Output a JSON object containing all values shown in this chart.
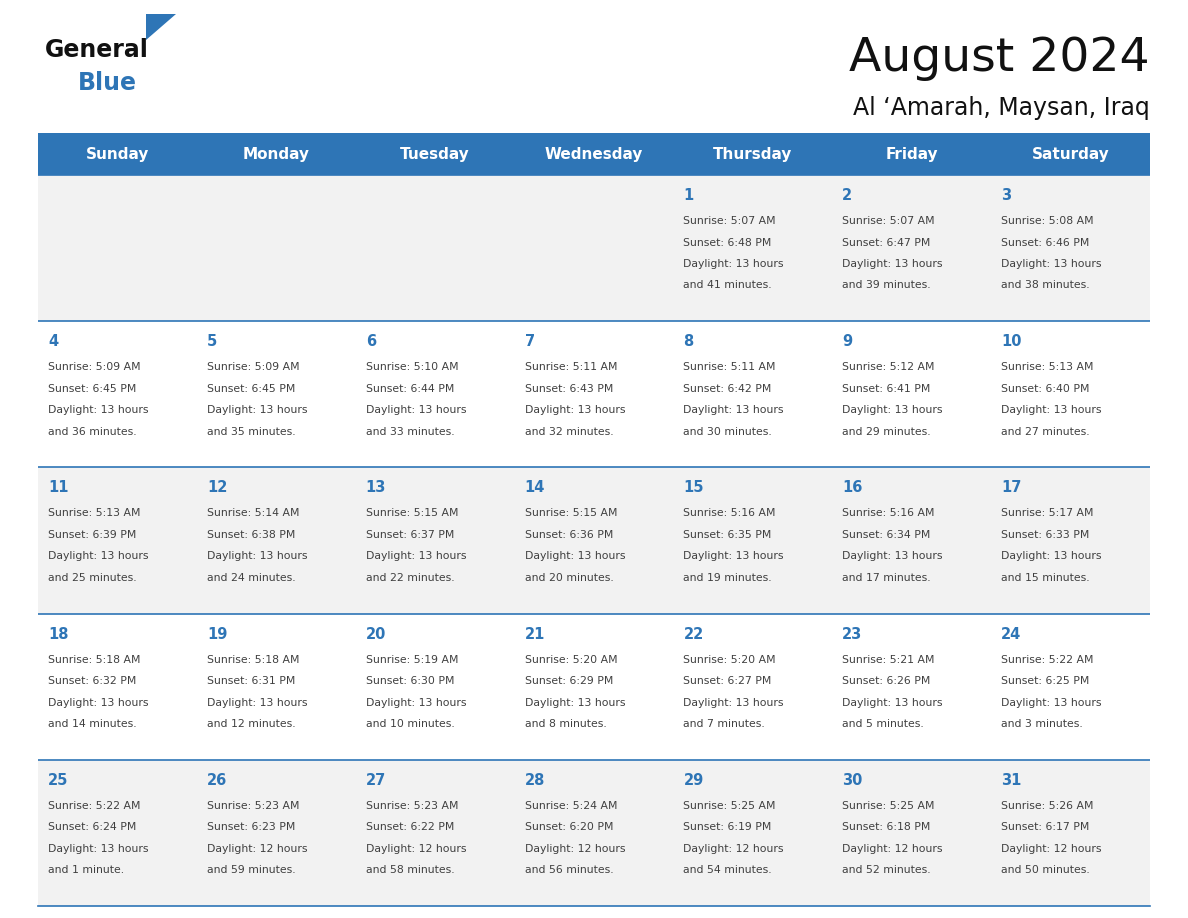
{
  "title": "August 2024",
  "subtitle": "Al ‘Amarah, Maysan, Iraq",
  "header_color": "#2E75B6",
  "header_text_color": "#FFFFFF",
  "day_names": [
    "Sunday",
    "Monday",
    "Tuesday",
    "Wednesday",
    "Thursday",
    "Friday",
    "Saturday"
  ],
  "cell_bg_row0": "#F2F2F2",
  "cell_bg_row1": "#FFFFFF",
  "text_color": "#404040",
  "blue_text_color": "#2E75B6",
  "line_color": "#2E75B6",
  "days": [
    {
      "day": 1,
      "col": 4,
      "row": 0,
      "sunrise": "5:07 AM",
      "sunset": "6:48 PM",
      "dl1": "Daylight: 13 hours",
      "dl2": "and 41 minutes."
    },
    {
      "day": 2,
      "col": 5,
      "row": 0,
      "sunrise": "5:07 AM",
      "sunset": "6:47 PM",
      "dl1": "Daylight: 13 hours",
      "dl2": "and 39 minutes."
    },
    {
      "day": 3,
      "col": 6,
      "row": 0,
      "sunrise": "5:08 AM",
      "sunset": "6:46 PM",
      "dl1": "Daylight: 13 hours",
      "dl2": "and 38 minutes."
    },
    {
      "day": 4,
      "col": 0,
      "row": 1,
      "sunrise": "5:09 AM",
      "sunset": "6:45 PM",
      "dl1": "Daylight: 13 hours",
      "dl2": "and 36 minutes."
    },
    {
      "day": 5,
      "col": 1,
      "row": 1,
      "sunrise": "5:09 AM",
      "sunset": "6:45 PM",
      "dl1": "Daylight: 13 hours",
      "dl2": "and 35 minutes."
    },
    {
      "day": 6,
      "col": 2,
      "row": 1,
      "sunrise": "5:10 AM",
      "sunset": "6:44 PM",
      "dl1": "Daylight: 13 hours",
      "dl2": "and 33 minutes."
    },
    {
      "day": 7,
      "col": 3,
      "row": 1,
      "sunrise": "5:11 AM",
      "sunset": "6:43 PM",
      "dl1": "Daylight: 13 hours",
      "dl2": "and 32 minutes."
    },
    {
      "day": 8,
      "col": 4,
      "row": 1,
      "sunrise": "5:11 AM",
      "sunset": "6:42 PM",
      "dl1": "Daylight: 13 hours",
      "dl2": "and 30 minutes."
    },
    {
      "day": 9,
      "col": 5,
      "row": 1,
      "sunrise": "5:12 AM",
      "sunset": "6:41 PM",
      "dl1": "Daylight: 13 hours",
      "dl2": "and 29 minutes."
    },
    {
      "day": 10,
      "col": 6,
      "row": 1,
      "sunrise": "5:13 AM",
      "sunset": "6:40 PM",
      "dl1": "Daylight: 13 hours",
      "dl2": "and 27 minutes."
    },
    {
      "day": 11,
      "col": 0,
      "row": 2,
      "sunrise": "5:13 AM",
      "sunset": "6:39 PM",
      "dl1": "Daylight: 13 hours",
      "dl2": "and 25 minutes."
    },
    {
      "day": 12,
      "col": 1,
      "row": 2,
      "sunrise": "5:14 AM",
      "sunset": "6:38 PM",
      "dl1": "Daylight: 13 hours",
      "dl2": "and 24 minutes."
    },
    {
      "day": 13,
      "col": 2,
      "row": 2,
      "sunrise": "5:15 AM",
      "sunset": "6:37 PM",
      "dl1": "Daylight: 13 hours",
      "dl2": "and 22 minutes."
    },
    {
      "day": 14,
      "col": 3,
      "row": 2,
      "sunrise": "5:15 AM",
      "sunset": "6:36 PM",
      "dl1": "Daylight: 13 hours",
      "dl2": "and 20 minutes."
    },
    {
      "day": 15,
      "col": 4,
      "row": 2,
      "sunrise": "5:16 AM",
      "sunset": "6:35 PM",
      "dl1": "Daylight: 13 hours",
      "dl2": "and 19 minutes."
    },
    {
      "day": 16,
      "col": 5,
      "row": 2,
      "sunrise": "5:16 AM",
      "sunset": "6:34 PM",
      "dl1": "Daylight: 13 hours",
      "dl2": "and 17 minutes."
    },
    {
      "day": 17,
      "col": 6,
      "row": 2,
      "sunrise": "5:17 AM",
      "sunset": "6:33 PM",
      "dl1": "Daylight: 13 hours",
      "dl2": "and 15 minutes."
    },
    {
      "day": 18,
      "col": 0,
      "row": 3,
      "sunrise": "5:18 AM",
      "sunset": "6:32 PM",
      "dl1": "Daylight: 13 hours",
      "dl2": "and 14 minutes."
    },
    {
      "day": 19,
      "col": 1,
      "row": 3,
      "sunrise": "5:18 AM",
      "sunset": "6:31 PM",
      "dl1": "Daylight: 13 hours",
      "dl2": "and 12 minutes."
    },
    {
      "day": 20,
      "col": 2,
      "row": 3,
      "sunrise": "5:19 AM",
      "sunset": "6:30 PM",
      "dl1": "Daylight: 13 hours",
      "dl2": "and 10 minutes."
    },
    {
      "day": 21,
      "col": 3,
      "row": 3,
      "sunrise": "5:20 AM",
      "sunset": "6:29 PM",
      "dl1": "Daylight: 13 hours",
      "dl2": "and 8 minutes."
    },
    {
      "day": 22,
      "col": 4,
      "row": 3,
      "sunrise": "5:20 AM",
      "sunset": "6:27 PM",
      "dl1": "Daylight: 13 hours",
      "dl2": "and 7 minutes."
    },
    {
      "day": 23,
      "col": 5,
      "row": 3,
      "sunrise": "5:21 AM",
      "sunset": "6:26 PM",
      "dl1": "Daylight: 13 hours",
      "dl2": "and 5 minutes."
    },
    {
      "day": 24,
      "col": 6,
      "row": 3,
      "sunrise": "5:22 AM",
      "sunset": "6:25 PM",
      "dl1": "Daylight: 13 hours",
      "dl2": "and 3 minutes."
    },
    {
      "day": 25,
      "col": 0,
      "row": 4,
      "sunrise": "5:22 AM",
      "sunset": "6:24 PM",
      "dl1": "Daylight: 13 hours",
      "dl2": "and 1 minute."
    },
    {
      "day": 26,
      "col": 1,
      "row": 4,
      "sunrise": "5:23 AM",
      "sunset": "6:23 PM",
      "dl1": "Daylight: 12 hours",
      "dl2": "and 59 minutes."
    },
    {
      "day": 27,
      "col": 2,
      "row": 4,
      "sunrise": "5:23 AM",
      "sunset": "6:22 PM",
      "dl1": "Daylight: 12 hours",
      "dl2": "and 58 minutes."
    },
    {
      "day": 28,
      "col": 3,
      "row": 4,
      "sunrise": "5:24 AM",
      "sunset": "6:20 PM",
      "dl1": "Daylight: 12 hours",
      "dl2": "and 56 minutes."
    },
    {
      "day": 29,
      "col": 4,
      "row": 4,
      "sunrise": "5:25 AM",
      "sunset": "6:19 PM",
      "dl1": "Daylight: 12 hours",
      "dl2": "and 54 minutes."
    },
    {
      "day": 30,
      "col": 5,
      "row": 4,
      "sunrise": "5:25 AM",
      "sunset": "6:18 PM",
      "dl1": "Daylight: 12 hours",
      "dl2": "and 52 minutes."
    },
    {
      "day": 31,
      "col": 6,
      "row": 4,
      "sunrise": "5:26 AM",
      "sunset": "6:17 PM",
      "dl1": "Daylight: 12 hours",
      "dl2": "and 50 minutes."
    }
  ]
}
